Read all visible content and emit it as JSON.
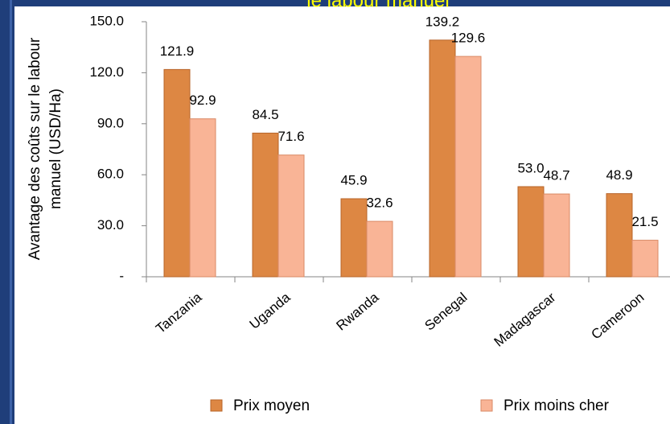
{
  "chart_data": {
    "type": "bar",
    "title": "le labour manuel",
    "ylabel": [
      "Avantage des coûts sur le labour",
      "manuel  (USD/Ha)"
    ],
    "categories": [
      "Tanzania",
      "Uganda",
      "Rwanda",
      "Senegal",
      "Madagascar",
      "Cameroon"
    ],
    "series": [
      {
        "name": "Prix moyen",
        "color": "#dd8743",
        "edge": "#b8652a",
        "values": [
          121.9,
          84.5,
          45.9,
          139.2,
          53,
          48.9
        ],
        "value_labels": [
          "121.9",
          "84.5",
          "45.9",
          "139.2",
          "53.0",
          "48.9"
        ]
      },
      {
        "name": "Prix moins cher",
        "color": "#f9b496",
        "edge": "#d98a66",
        "values": [
          92.9,
          71.6,
          32.6,
          129.6,
          48.7,
          21.5
        ],
        "value_labels": [
          "92.9",
          "71.6",
          "32.6",
          "129.6",
          "48.7",
          "21.5"
        ]
      }
    ],
    "ylim": [
      0,
      150
    ],
    "yticks": [
      {
        "value": 0,
        "label": "-"
      },
      {
        "value": 30,
        "label": "30.0"
      },
      {
        "value": 60,
        "label": "60.0"
      },
      {
        "value": 90,
        "label": "90.0"
      },
      {
        "value": 120,
        "label": "120.0"
      },
      {
        "value": 150,
        "label": "150.0"
      }
    ],
    "grid": false,
    "legend": "bottom"
  }
}
